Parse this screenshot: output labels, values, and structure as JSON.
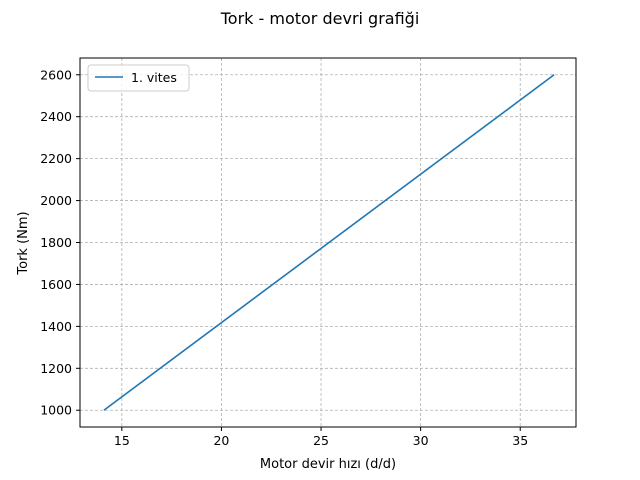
{
  "chart_data": {
    "type": "line",
    "title": "Tork - motor devri grafiği",
    "xlabel": "Motor devir hızı (d/d)",
    "ylabel": "Tork (Nm)",
    "xlim": [
      12.9,
      37.8
    ],
    "ylim": [
      920,
      2680
    ],
    "xticks": [
      15,
      20,
      25,
      30,
      35
    ],
    "yticks": [
      1000,
      1200,
      1400,
      1600,
      1800,
      2000,
      2200,
      2400,
      2600
    ],
    "grid": true,
    "legend_position": "top-left",
    "series": [
      {
        "name": "1. vites",
        "color": "#1f77b4",
        "x": [
          14.1,
          36.7
        ],
        "y": [
          1000,
          2600
        ]
      }
    ]
  }
}
